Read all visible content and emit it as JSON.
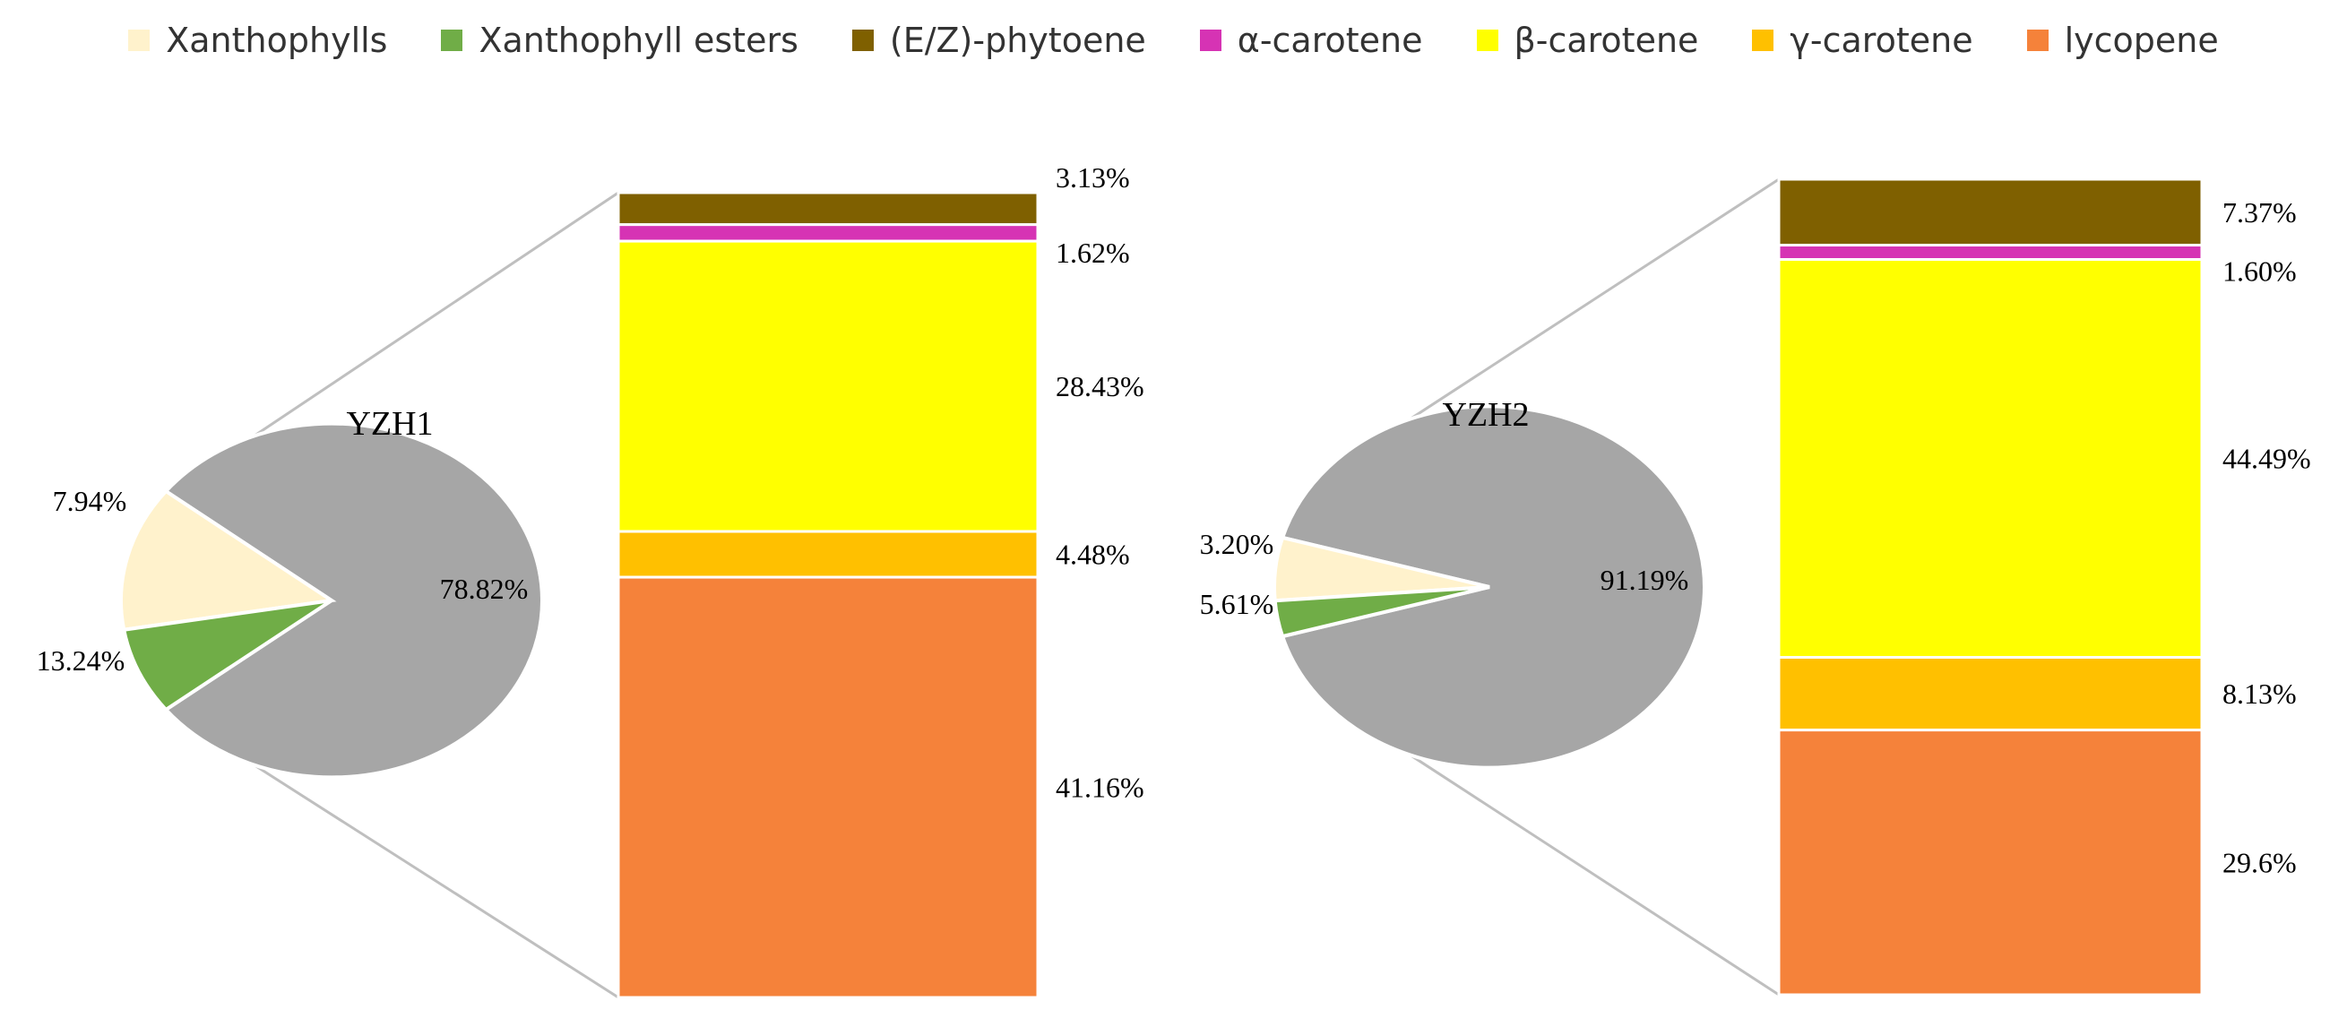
{
  "colors": {
    "other": "#a6a6a6",
    "Xanthophylls": "#fff2cc",
    "Xanthophyll esters": "#70ad47",
    "(E/Z)-phytoene": "#7f6000",
    "α-carotene": "#d633b4",
    "β-carotene": "#ffff00",
    "γ-carotene": "#ffc000",
    "lycopene": "#f5823a"
  },
  "legend": [
    {
      "label": "Xanthophylls",
      "color": "#fff2cc"
    },
    {
      "label": "Xanthophyll esters",
      "color": "#70ad47"
    },
    {
      "label": "(E/Z)-phytoene",
      "color": "#7f6000"
    },
    {
      "label": "α-carotene",
      "color": "#d633b4"
    },
    {
      "label": "β-carotene",
      "color": "#ffff00"
    },
    {
      "label": "γ-carotene",
      "color": "#ffc000"
    },
    {
      "label": "lycopene",
      "color": "#f5823a"
    }
  ],
  "chart_data": [
    {
      "type": "pie",
      "title": "YZH1",
      "pie": [
        {
          "name": "",
          "value": 78.82,
          "label": "78.82%"
        },
        {
          "name": "Xanthophylls",
          "value": 13.24,
          "label": "13.24%"
        },
        {
          "name": "Xanthophyll esters",
          "value": 7.94,
          "label": "7.94%"
        }
      ],
      "bar": [
        {
          "name": "(E/Z)-phytoene",
          "value": 3.13,
          "label": "3.13%"
        },
        {
          "name": "α-carotene",
          "value": 1.62,
          "label": "1.62%"
        },
        {
          "name": "β-carotene",
          "value": 28.43,
          "label": "28.43%"
        },
        {
          "name": "γ-carotene",
          "value": 4.48,
          "label": "4.48%"
        },
        {
          "name": "lycopene",
          "value": 41.16,
          "label": "41.16%"
        }
      ]
    },
    {
      "type": "pie",
      "title": "YZH2",
      "pie": [
        {
          "name": "",
          "value": 91.19,
          "label": "91.19%"
        },
        {
          "name": "Xanthophylls",
          "value": 5.61,
          "label": "5.61%"
        },
        {
          "name": "Xanthophyll esters",
          "value": 3.2,
          "label": "3.20%"
        }
      ],
      "bar": [
        {
          "name": "(E/Z)-phytoene",
          "value": 7.37,
          "label": "7.37%"
        },
        {
          "name": "α-carotene",
          "value": 1.6,
          "label": "1.60%"
        },
        {
          "name": "β-carotene",
          "value": 44.49,
          "label": "44.49%"
        },
        {
          "name": "γ-carotene",
          "value": 8.13,
          "label": "8.13%"
        },
        {
          "name": "lycopene",
          "value": 29.6,
          "label": "29.6%"
        }
      ]
    }
  ]
}
